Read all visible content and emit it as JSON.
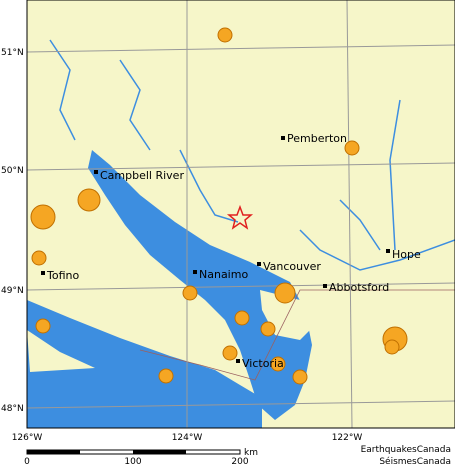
{
  "map": {
    "latitude_labels": [
      "51°N",
      "50°N",
      "49°N",
      "48°N"
    ],
    "longitude_labels": [
      "126°W",
      "124°W",
      "122°W"
    ],
    "cities": [
      "Pemberton",
      "Campbell River",
      "Tofino",
      "Nanaimo",
      "Vancouver",
      "Abbotsford",
      "Hope",
      "Victoria"
    ],
    "scale": {
      "labels": [
        0,
        100,
        200
      ],
      "unit": "km"
    },
    "credit": [
      "EarthquakesCanada",
      "SéismesCanada"
    ]
  }
}
